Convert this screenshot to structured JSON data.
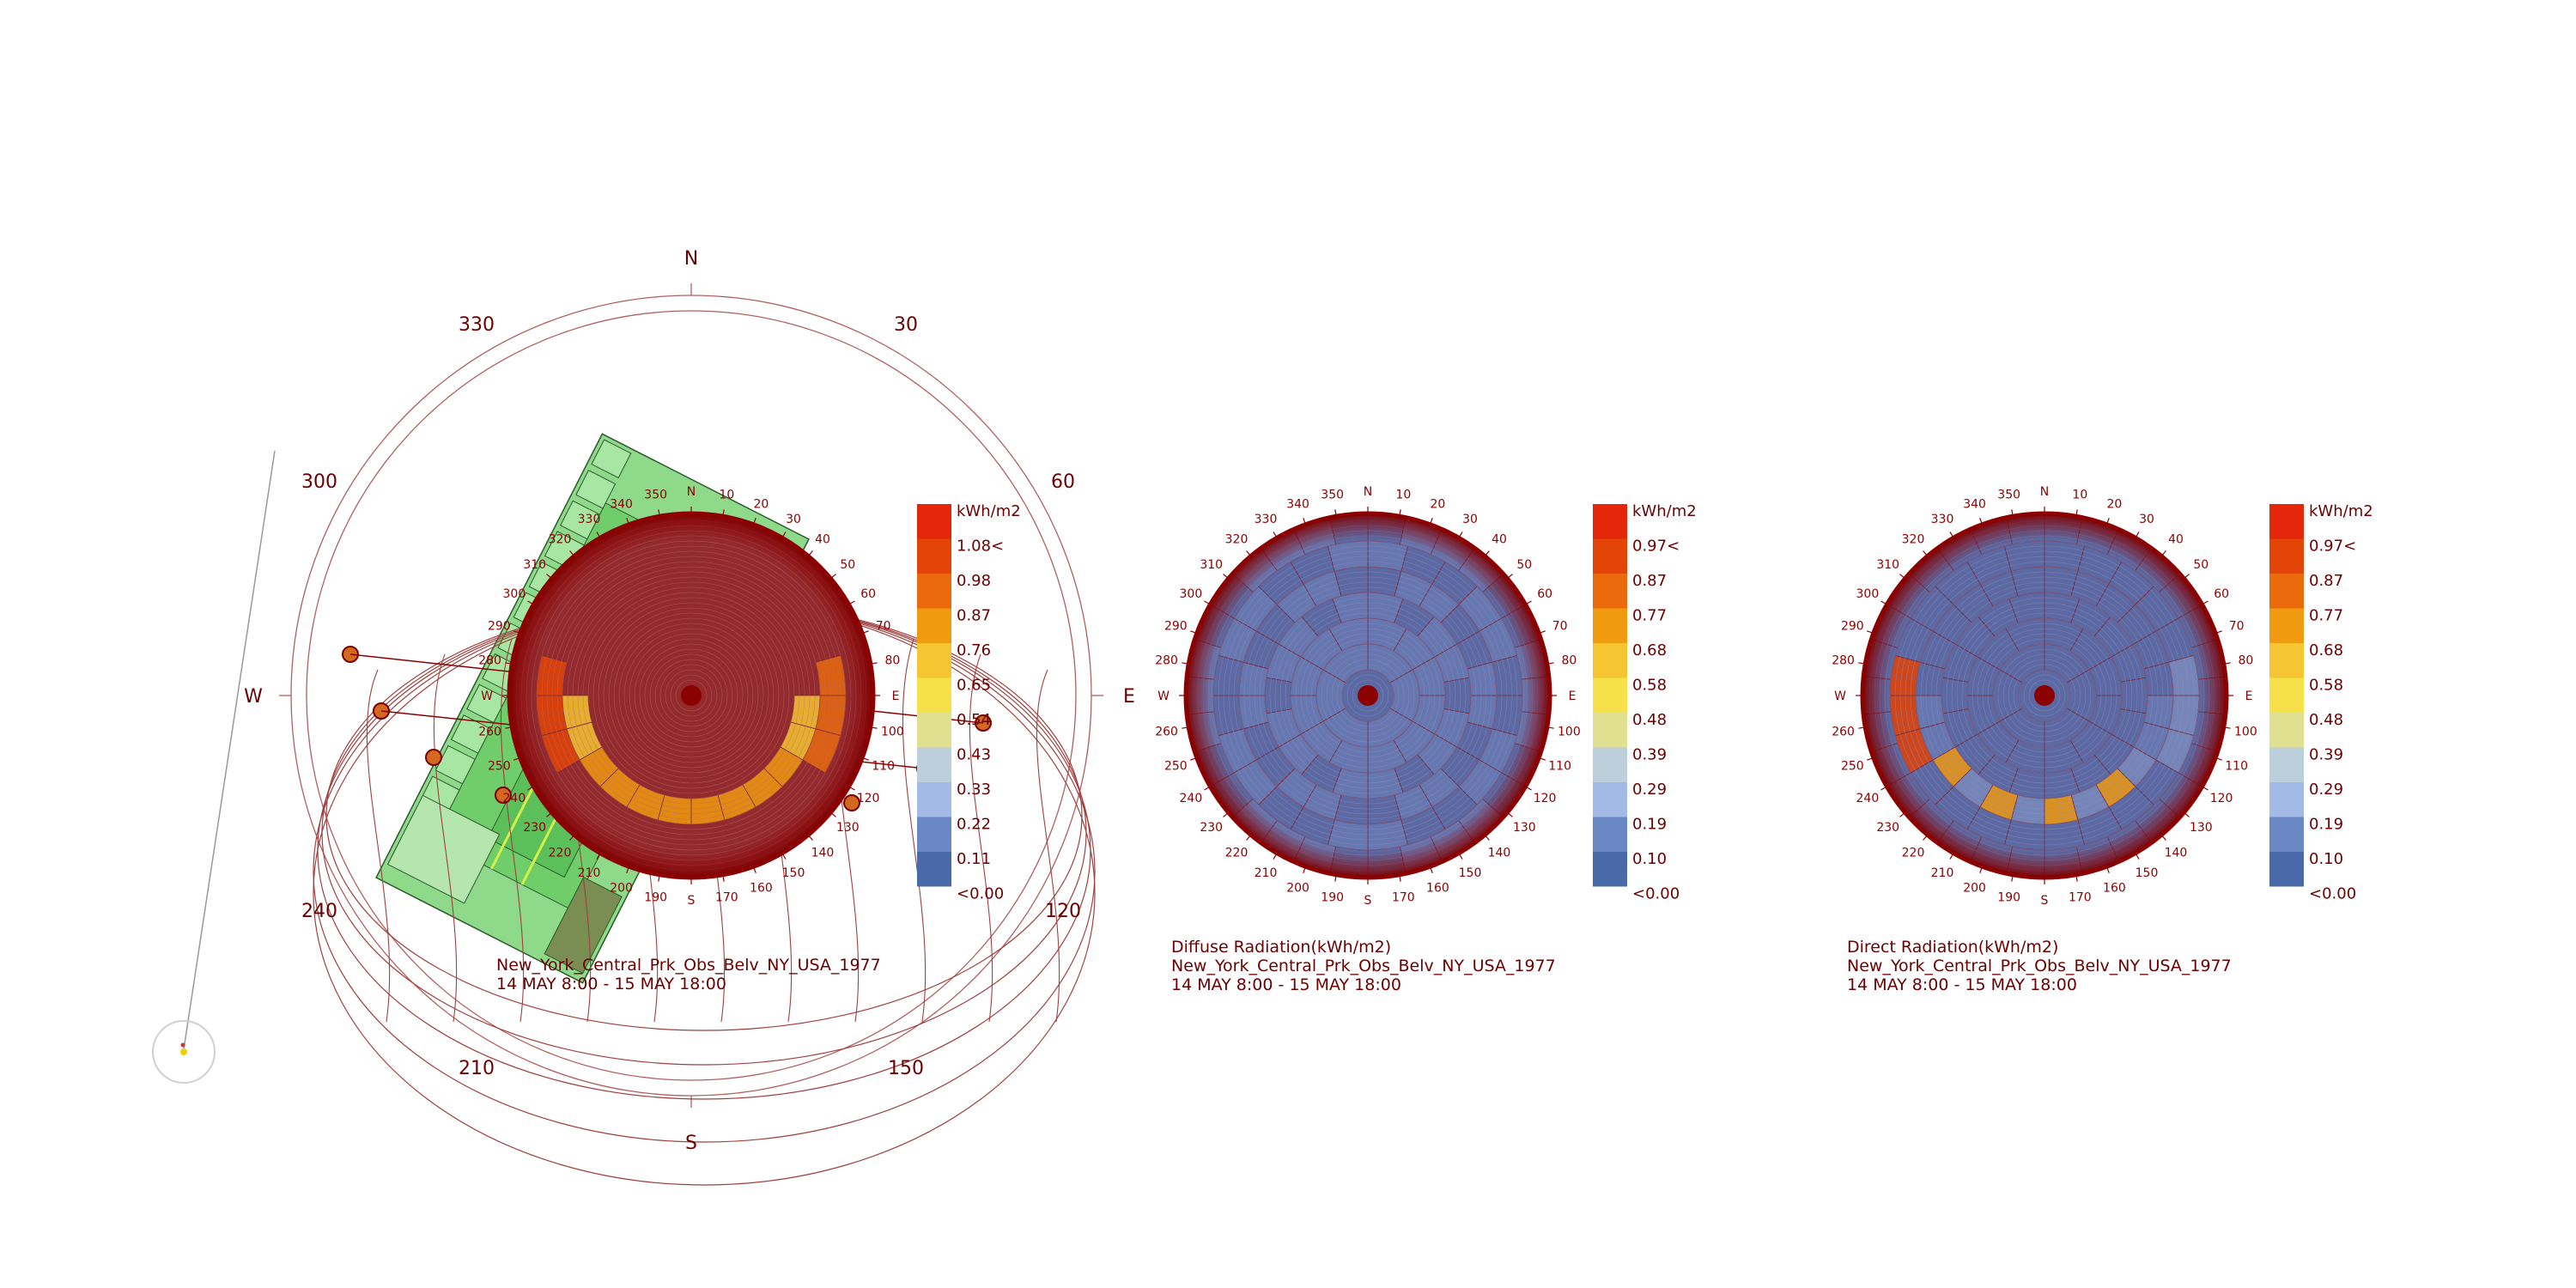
{
  "compass": {
    "labels": {
      "n": "N",
      "s": "S",
      "e": "E",
      "w": "W"
    },
    "degrees": [
      "30",
      "60",
      "120",
      "150",
      "210",
      "240",
      "300",
      "330"
    ]
  },
  "dome_ticks": [
    "N",
    "10",
    "20",
    "30",
    "40",
    "50",
    "60",
    "70",
    "80",
    "E",
    "100",
    "110",
    "120",
    "130",
    "140",
    "150",
    "160",
    "170",
    "S",
    "190",
    "200",
    "210",
    "220",
    "230",
    "240",
    "250",
    "260",
    "W",
    "280",
    "290",
    "300",
    "310",
    "320",
    "330",
    "340",
    "350"
  ],
  "colors": {
    "dark_red": "#8b0000",
    "legend": [
      "#4a69a9",
      "#6a88c4",
      "#a3b9e6",
      "#bccfdb",
      "#dfe090",
      "#f7e14b",
      "#f5c632",
      "#f09a10",
      "#ea6a0c",
      "#e34408",
      "#e4260b"
    ]
  },
  "charts": [
    {
      "name": "total",
      "unit": "kWh/m2",
      "legend_values": [
        "1.08<",
        "0.98",
        "0.87",
        "0.76",
        "0.65",
        "0.54",
        "0.43",
        "0.33",
        "0.22",
        "0.11",
        "<0.00"
      ],
      "caption": [
        "New_York_Central_Prk_Obs_Belv_NY_USA_1977",
        "14 MAY 8:00 - 15 MAY 18:00"
      ]
    },
    {
      "name": "diffuse",
      "unit": "kWh/m2",
      "legend_values": [
        "0.97<",
        "0.87",
        "0.77",
        "0.68",
        "0.58",
        "0.48",
        "0.39",
        "0.29",
        "0.19",
        "0.10",
        "<0.00"
      ],
      "caption": [
        "Diffuse Radiation(kWh/m2)",
        "New_York_Central_Prk_Obs_Belv_NY_USA_1977",
        "14 MAY 8:00 - 15 MAY 18:00"
      ]
    },
    {
      "name": "direct",
      "unit": "kWh/m2",
      "legend_values": [
        "0.97<",
        "0.87",
        "0.77",
        "0.68",
        "0.58",
        "0.48",
        "0.39",
        "0.29",
        "0.19",
        "0.10",
        "<0.00"
      ],
      "caption": [
        "Direct Radiation(kWh/m2)",
        "New_York_Central_Prk_Obs_Belv_NY_USA_1977",
        "14 MAY 8:00 - 15 MAY 18:00"
      ]
    }
  ]
}
